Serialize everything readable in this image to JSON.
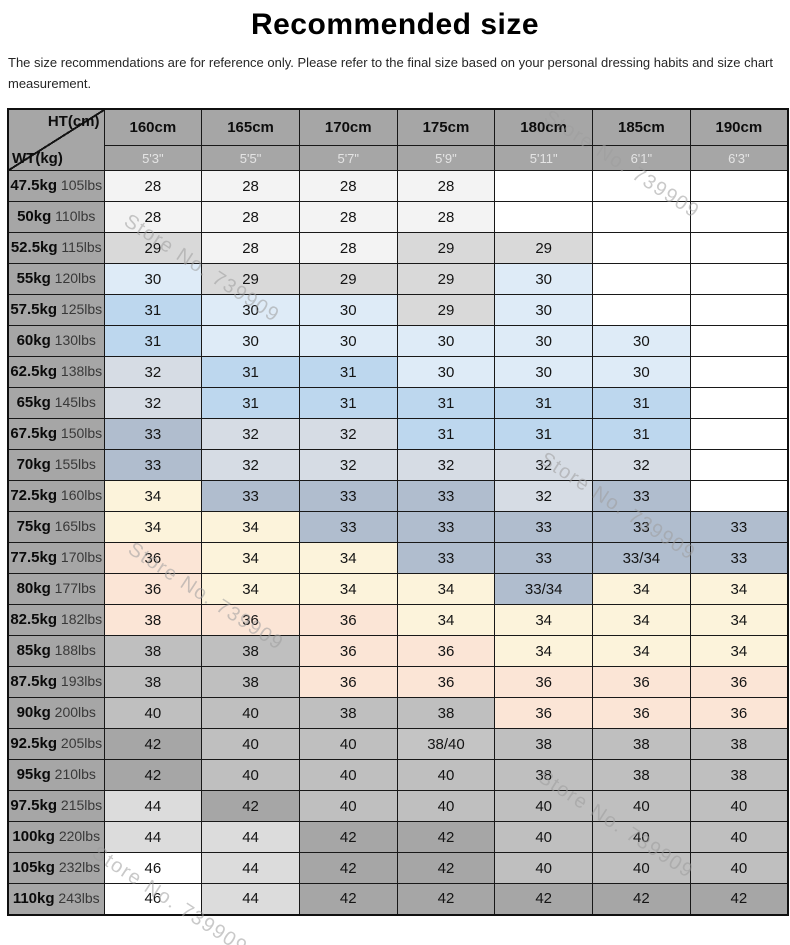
{
  "page": {
    "title": "Recommended size",
    "disclaimer": "The size recommendations are for reference only. Please refer to the final size based on your personal dressing habits and size chart measurement.",
    "watermark_text": "Store No. 739909"
  },
  "palette": {
    "": "#FFFFFF",
    "28": "#F3F3F3",
    "29": "#D9D9D9",
    "30": "#DEEBF7",
    "31": "#BDD7EE",
    "32": "#D6DCE4",
    "33": "#B0BDCE",
    "33/34": "#B0BDCE",
    "34": "#FCF3DB",
    "36": "#FBE5D6",
    "38": "#BFBFBF",
    "38/40": "#C4C4C4",
    "40": "#BFBFBF",
    "42": "#A6A6A6",
    "44": "#DCDCDC",
    "46": "#FFFFFF"
  },
  "theme": {
    "header_bg": "#A6A6A6",
    "border": "#181818"
  },
  "chart_data": {
    "type": "table",
    "title": "Recommended size",
    "corner": {
      "height_label": "HT(cm)",
      "weight_label": "WT(kg)"
    },
    "height_columns": [
      {
        "cm": "160cm",
        "ft": "5'3\""
      },
      {
        "cm": "165cm",
        "ft": "5'5\""
      },
      {
        "cm": "170cm",
        "ft": "5'7\""
      },
      {
        "cm": "175cm",
        "ft": "5'9\""
      },
      {
        "cm": "180cm",
        "ft": "5'11\""
      },
      {
        "cm": "185cm",
        "ft": "6'1\""
      },
      {
        "cm": "190cm",
        "ft": "6'3\""
      }
    ],
    "rows": [
      {
        "kg": "47.5kg",
        "lbs": "105lbs",
        "sizes": [
          "28",
          "28",
          "28",
          "28",
          "",
          "",
          ""
        ]
      },
      {
        "kg": "50kg",
        "lbs": "110lbs",
        "sizes": [
          "28",
          "28",
          "28",
          "28",
          "",
          "",
          ""
        ]
      },
      {
        "kg": "52.5kg",
        "lbs": "115lbs",
        "sizes": [
          "29",
          "28",
          "28",
          "29",
          "29",
          "",
          ""
        ]
      },
      {
        "kg": "55kg",
        "lbs": "120lbs",
        "sizes": [
          "30",
          "29",
          "29",
          "29",
          "30",
          "",
          ""
        ]
      },
      {
        "kg": "57.5kg",
        "lbs": "125lbs",
        "sizes": [
          "31",
          "30",
          "30",
          "29",
          "30",
          "",
          ""
        ]
      },
      {
        "kg": "60kg",
        "lbs": "130lbs",
        "sizes": [
          "31",
          "30",
          "30",
          "30",
          "30",
          "30",
          ""
        ]
      },
      {
        "kg": "62.5kg",
        "lbs": "138lbs",
        "sizes": [
          "32",
          "31",
          "31",
          "30",
          "30",
          "30",
          ""
        ]
      },
      {
        "kg": "65kg",
        "lbs": "145lbs",
        "sizes": [
          "32",
          "31",
          "31",
          "31",
          "31",
          "31",
          ""
        ]
      },
      {
        "kg": "67.5kg",
        "lbs": "150lbs",
        "sizes": [
          "33",
          "32",
          "32",
          "31",
          "31",
          "31",
          ""
        ]
      },
      {
        "kg": "70kg",
        "lbs": "155lbs",
        "sizes": [
          "33",
          "32",
          "32",
          "32",
          "32",
          "32",
          ""
        ]
      },
      {
        "kg": "72.5kg",
        "lbs": "160lbs",
        "sizes": [
          "34",
          "33",
          "33",
          "33",
          "32",
          "33",
          ""
        ]
      },
      {
        "kg": "75kg",
        "lbs": "165lbs",
        "sizes": [
          "34",
          "34",
          "33",
          "33",
          "33",
          "33",
          "33"
        ]
      },
      {
        "kg": "77.5kg",
        "lbs": "170lbs",
        "sizes": [
          "36",
          "34",
          "34",
          "33",
          "33",
          "33/34",
          "33"
        ]
      },
      {
        "kg": "80kg",
        "lbs": "177lbs",
        "sizes": [
          "36",
          "34",
          "34",
          "34",
          "33/34",
          "34",
          "34"
        ]
      },
      {
        "kg": "82.5kg",
        "lbs": "182lbs",
        "sizes": [
          "38",
          "36",
          "36",
          "34",
          "34",
          "34",
          "34"
        ]
      },
      {
        "kg": "85kg",
        "lbs": "188lbs",
        "sizes": [
          "38",
          "38",
          "36",
          "36",
          "34",
          "34",
          "34"
        ]
      },
      {
        "kg": "87.5kg",
        "lbs": "193lbs",
        "sizes": [
          "38",
          "38",
          "36",
          "36",
          "36",
          "36",
          "36"
        ]
      },
      {
        "kg": "90kg",
        "lbs": "200lbs",
        "sizes": [
          "40",
          "40",
          "38",
          "38",
          "36",
          "36",
          "36"
        ]
      },
      {
        "kg": "92.5kg",
        "lbs": "205lbs",
        "sizes": [
          "42",
          "40",
          "40",
          "38/40",
          "38",
          "38",
          "38"
        ]
      },
      {
        "kg": "95kg",
        "lbs": "210lbs",
        "sizes": [
          "42",
          "40",
          "40",
          "40",
          "38",
          "38",
          "38"
        ]
      },
      {
        "kg": "97.5kg",
        "lbs": "215lbs",
        "sizes": [
          "44",
          "42",
          "40",
          "40",
          "40",
          "40",
          "40"
        ]
      },
      {
        "kg": "100kg",
        "lbs": "220lbs",
        "sizes": [
          "44",
          "44",
          "42",
          "42",
          "40",
          "40",
          "40"
        ]
      },
      {
        "kg": "105kg",
        "lbs": "232lbs",
        "sizes": [
          "46",
          "44",
          "42",
          "42",
          "40",
          "40",
          "40"
        ]
      },
      {
        "kg": "110kg",
        "lbs": "243lbs",
        "sizes": [
          "46",
          "44",
          "42",
          "42",
          "42",
          "42",
          "42"
        ]
      }
    ],
    "cell_color_overrides": [
      {
        "row": 14,
        "col": 0,
        "color": "#FBE5D6"
      }
    ]
  }
}
